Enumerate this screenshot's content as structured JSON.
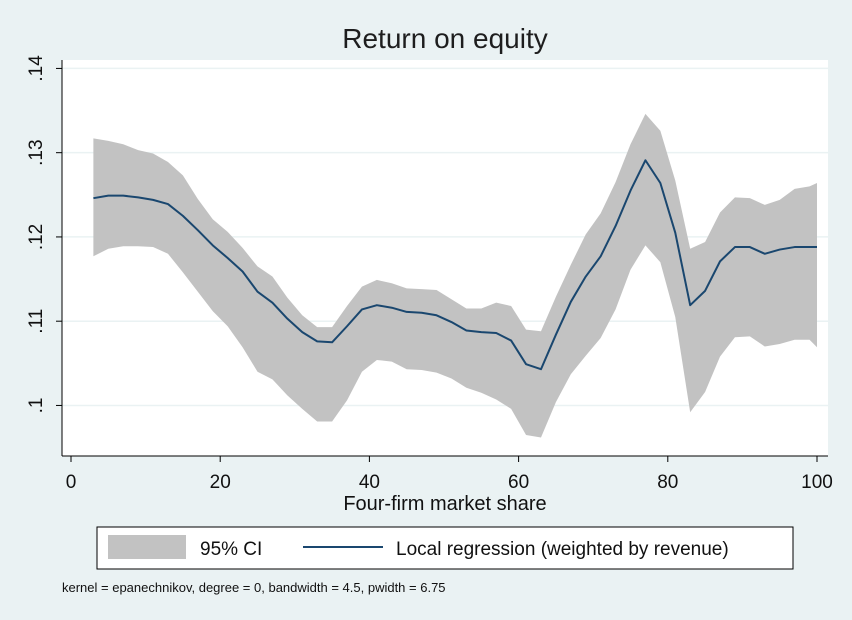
{
  "chart_data": {
    "type": "line",
    "title": "Return on equity",
    "xlabel": "Four-firm market share",
    "ylabel": "",
    "xlim": [
      0,
      100
    ],
    "ylim": [
      0.094,
      0.141
    ],
    "x_ticks": [
      0,
      20,
      40,
      60,
      80,
      100
    ],
    "y_ticks": [
      0.1,
      0.11,
      0.12,
      0.13,
      0.14
    ],
    "x_tick_labels": [
      "0",
      "20",
      "40",
      "60",
      "80",
      "100"
    ],
    "y_tick_labels": [
      ".1",
      ".11",
      ".12",
      ".13",
      ".14"
    ],
    "grid": true,
    "legend_position": "bottom",
    "note": "kernel = epanechnikov, degree = 0, bandwidth = 4.5, pwidth = 6.75",
    "colors": {
      "background": "#eaf2f3",
      "plot_background": "#ffffff",
      "ci_fill": "#c2c2c2",
      "line": "#1a476f",
      "grid": "#eaf2f3"
    },
    "series": [
      {
        "name": "Local regression (weighted by revenue)",
        "kind": "line",
        "x": [
          3,
          5,
          7,
          9,
          11,
          13,
          15,
          17,
          19,
          21,
          23,
          25,
          27,
          29,
          31,
          33,
          35,
          37,
          39,
          41,
          43,
          45,
          47,
          49,
          51,
          53,
          55,
          57,
          59,
          61,
          63,
          65,
          67,
          69,
          71,
          73,
          75,
          77,
          79,
          81,
          83,
          85,
          87,
          89,
          91,
          93,
          95,
          97,
          99,
          100
        ],
        "y": [
          0.1246,
          0.1249,
          0.1249,
          0.1247,
          0.1244,
          0.1239,
          0.1225,
          0.1208,
          0.119,
          0.1175,
          0.1159,
          0.1135,
          0.1122,
          0.1103,
          0.1087,
          0.1076,
          0.1075,
          0.1094,
          0.1114,
          0.1119,
          0.1116,
          0.1111,
          0.111,
          0.1107,
          0.1099,
          0.1089,
          0.1087,
          0.1086,
          0.1077,
          0.1049,
          0.1043,
          0.1084,
          0.1123,
          0.1153,
          0.1177,
          0.1213,
          0.1255,
          0.1291,
          0.1264,
          0.1205,
          0.1119,
          0.1136,
          0.1171,
          0.1188,
          0.1188,
          0.118,
          0.1185,
          0.1188,
          0.1188,
          0.1188
        ]
      },
      {
        "name": "95% CI",
        "kind": "band",
        "x": [
          3,
          5,
          7,
          9,
          11,
          13,
          15,
          17,
          19,
          21,
          23,
          25,
          27,
          29,
          31,
          33,
          35,
          37,
          39,
          41,
          43,
          45,
          47,
          49,
          51,
          53,
          55,
          57,
          59,
          61,
          63,
          65,
          67,
          69,
          71,
          73,
          75,
          77,
          79,
          81,
          83,
          85,
          87,
          89,
          91,
          93,
          95,
          97,
          99,
          100
        ],
        "lower": [
          0.1177,
          0.1186,
          0.1189,
          0.1189,
          0.1188,
          0.118,
          0.1158,
          0.1135,
          0.1112,
          0.1094,
          0.1069,
          0.104,
          0.1031,
          0.1012,
          0.0996,
          0.0981,
          0.0981,
          0.1006,
          0.104,
          0.1054,
          0.1052,
          0.1043,
          0.1042,
          0.1039,
          0.1032,
          0.1021,
          0.1015,
          0.1007,
          0.0996,
          0.0965,
          0.0962,
          0.1004,
          0.1037,
          0.1059,
          0.108,
          0.1114,
          0.1161,
          0.119,
          0.117,
          0.1105,
          0.0992,
          0.1016,
          0.1058,
          0.1081,
          0.1082,
          0.107,
          0.1073,
          0.1078,
          0.1078,
          0.1069
        ],
        "upper": [
          0.1317,
          0.1314,
          0.131,
          0.1303,
          0.1299,
          0.1289,
          0.1273,
          0.1245,
          0.1221,
          0.1206,
          0.1187,
          0.1165,
          0.1153,
          0.1128,
          0.1107,
          0.1093,
          0.1093,
          0.1118,
          0.1141,
          0.1149,
          0.1145,
          0.1139,
          0.1138,
          0.1137,
          0.1126,
          0.1115,
          0.1115,
          0.1122,
          0.1118,
          0.109,
          0.1088,
          0.1129,
          0.1167,
          0.1203,
          0.1228,
          0.1265,
          0.131,
          0.1346,
          0.1326,
          0.1267,
          0.1186,
          0.1194,
          0.1229,
          0.1247,
          0.1246,
          0.1238,
          0.1244,
          0.1257,
          0.126,
          0.1264
        ]
      }
    ]
  }
}
